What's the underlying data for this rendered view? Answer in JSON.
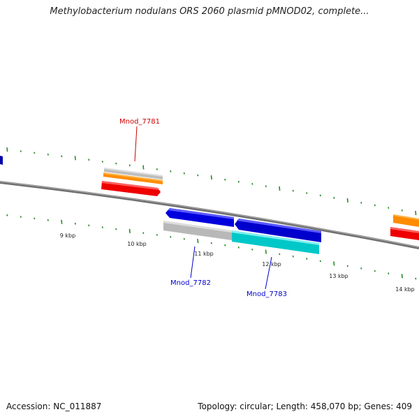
{
  "title": "Methylobacterium nodulans ORS 2060 plasmid pMNOD02, complete...",
  "footer": {
    "accession": "Accession: NC_011887",
    "summary": "Topology: circular; Length: 458,070 bp; Genes: 409"
  },
  "colors": {
    "backbone": "#888888",
    "tick": "#2a8a2a",
    "red_label": "#cc0000",
    "blue_label": "#0000cc"
  },
  "scale_labels": [
    "9 kbp",
    "10 kbp",
    "11 kbp",
    "12 kbp",
    "13 kbp",
    "14 kbp"
  ],
  "genes": [
    {
      "name": "Mnod_7781",
      "color": "#cc0000"
    },
    {
      "name": "Mnod_7782",
      "color": "#0000cc"
    },
    {
      "name": "Mnod_7783",
      "color": "#0000cc"
    }
  ]
}
